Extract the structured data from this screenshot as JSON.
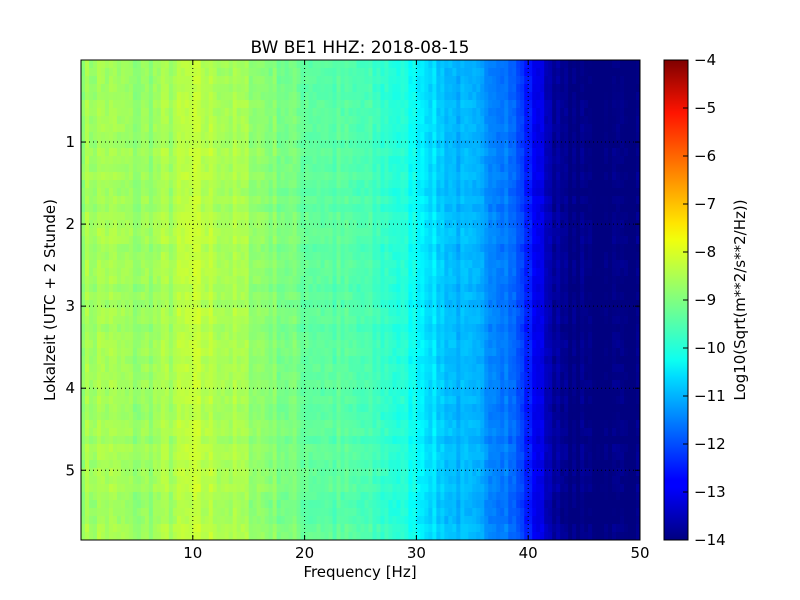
{
  "chart_data": {
    "type": "heatmap",
    "title": "BW BE1 HHZ: 2018-08-15",
    "xlabel": "Frequency [Hz]",
    "ylabel": "Lokalzeit (UTC + 2 Stunde)",
    "xlim": [
      0,
      50
    ],
    "ylim": [
      5.85,
      0.0
    ],
    "xticks": [
      10,
      20,
      30,
      40,
      50
    ],
    "yticks": [
      1,
      2,
      3,
      4,
      5
    ],
    "grid": true,
    "colormap": "jet",
    "colorbar": {
      "label": "Log10(Sqrt(m**2/s**2/Hz))",
      "range": [
        -14,
        -4
      ],
      "ticks": [
        -4,
        -5,
        -6,
        -7,
        -8,
        -9,
        -10,
        -11,
        -12,
        -13,
        -14
      ]
    },
    "profile": {
      "frequency_hz": [
        0,
        2,
        5,
        8,
        10,
        12,
        15,
        18,
        20,
        25,
        28,
        30,
        32,
        34,
        36,
        38,
        39,
        40,
        41,
        42,
        43,
        44,
        50
      ],
      "level": [
        -8.7,
        -8.6,
        -8.8,
        -8.6,
        -8.4,
        -8.5,
        -8.7,
        -9.0,
        -9.2,
        -9.5,
        -9.8,
        -10.2,
        -10.7,
        -11.0,
        -11.2,
        -11.5,
        -11.9,
        -12.5,
        -13.0,
        -13.5,
        -13.9,
        -14.0,
        -14.0
      ]
    }
  }
}
